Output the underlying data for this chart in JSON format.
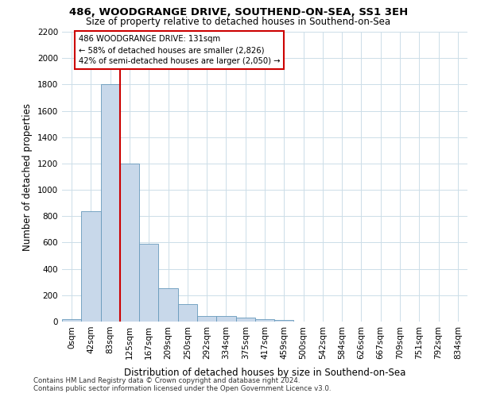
{
  "title": "486, WOODGRANGE DRIVE, SOUTHEND-ON-SEA, SS1 3EH",
  "subtitle": "Size of property relative to detached houses in Southend-on-Sea",
  "xlabel": "Distribution of detached houses by size in Southend-on-Sea",
  "ylabel": "Number of detached properties",
  "bar_labels": [
    "0sqm",
    "42sqm",
    "83sqm",
    "125sqm",
    "167sqm",
    "209sqm",
    "250sqm",
    "292sqm",
    "334sqm",
    "375sqm",
    "417sqm",
    "459sqm",
    "500sqm",
    "542sqm",
    "584sqm",
    "626sqm",
    "667sqm",
    "709sqm",
    "751sqm",
    "792sqm",
    "834sqm"
  ],
  "bar_values": [
    20,
    840,
    1800,
    1200,
    590,
    255,
    130,
    45,
    40,
    30,
    18,
    10,
    0,
    0,
    0,
    0,
    0,
    0,
    0,
    0,
    0
  ],
  "bar_color": "#c8d8ea",
  "bar_edgecolor": "#6699bb",
  "vline_color": "#cc0000",
  "annotation_text": "486 WOODGRANGE DRIVE: 131sqm\n← 58% of detached houses are smaller (2,826)\n42% of semi-detached houses are larger (2,050) →",
  "annotation_box_color": "#ffffff",
  "annotation_box_edgecolor": "#cc0000",
  "ylim": [
    0,
    2200
  ],
  "yticks": [
    0,
    200,
    400,
    600,
    800,
    1000,
    1200,
    1400,
    1600,
    1800,
    2000,
    2200
  ],
  "footnote1": "Contains HM Land Registry data © Crown copyright and database right 2024.",
  "footnote2": "Contains public sector information licensed under the Open Government Licence v3.0.",
  "bg_color": "#ffffff",
  "grid_color": "#ccdde8"
}
